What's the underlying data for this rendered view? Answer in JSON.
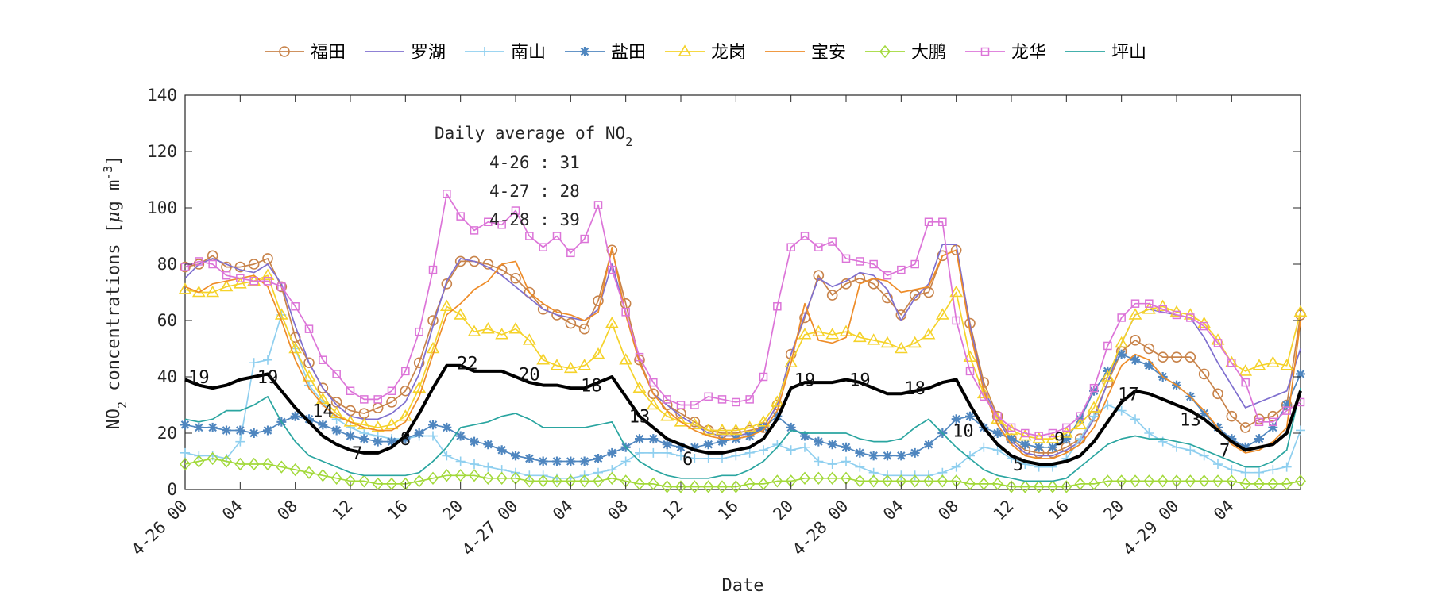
{
  "chart_data": {
    "type": "line",
    "title": "",
    "xlabel": "Date",
    "ylabel": "NO2 concentrations [μg m-3]",
    "ylabel_parts": {
      "pre": "NO",
      "sub": "2",
      "mid": " concentrations [",
      "mu": "μ",
      "mid2": "g m",
      "sup": "-3",
      "post": "]"
    },
    "x_hours": {
      "start": 0,
      "end": 78
    },
    "x_ticks": [
      {
        "hour": 0,
        "label": "4-26 00"
      },
      {
        "hour": 4,
        "label": "04"
      },
      {
        "hour": 8,
        "label": "08"
      },
      {
        "hour": 12,
        "label": "12"
      },
      {
        "hour": 16,
        "label": "16"
      },
      {
        "hour": 20,
        "label": "20"
      },
      {
        "hour": 24,
        "label": "4-27 00"
      },
      {
        "hour": 28,
        "label": "04"
      },
      {
        "hour": 32,
        "label": "08"
      },
      {
        "hour": 36,
        "label": "12"
      },
      {
        "hour": 40,
        "label": "16"
      },
      {
        "hour": 44,
        "label": "20"
      },
      {
        "hour": 48,
        "label": "4-28 00"
      },
      {
        "hour": 52,
        "label": "04"
      },
      {
        "hour": 56,
        "label": "08"
      },
      {
        "hour": 60,
        "label": "12"
      },
      {
        "hour": 64,
        "label": "16"
      },
      {
        "hour": 68,
        "label": "20"
      },
      {
        "hour": 72,
        "label": "4-29 00"
      },
      {
        "hour": 76,
        "label": "04"
      }
    ],
    "ylim": [
      0,
      140
    ],
    "y_ticks": [
      0,
      20,
      40,
      60,
      80,
      100,
      120,
      140
    ],
    "grid": false,
    "legend_position": "top",
    "annotation": {
      "title_pre": "Daily average of NO",
      "title_sub": "2",
      "lines": [
        "4-26 : 31",
        "4-27 : 28",
        "4-28 : 39"
      ]
    },
    "series": [
      {
        "name": "福田",
        "color": "#c8834a",
        "marker": "circle",
        "values": [
          79,
          80,
          83,
          79,
          79,
          80,
          82,
          72,
          54,
          45,
          36,
          31,
          28,
          27,
          29,
          31,
          35,
          45,
          60,
          73,
          81,
          81,
          80,
          78,
          75,
          70,
          64,
          62,
          59,
          57,
          67,
          85,
          66,
          46,
          34,
          30,
          27,
          24,
          21,
          20,
          20,
          21,
          22,
          30,
          48,
          61,
          76,
          69,
          73,
          75,
          73,
          68,
          62,
          69,
          70,
          83,
          85,
          59,
          38,
          26,
          18,
          14,
          13,
          13,
          15,
          18,
          26,
          38,
          49,
          53,
          50,
          47,
          47,
          47,
          41,
          34,
          26,
          22,
          25,
          26,
          30,
          62
        ]
      },
      {
        "name": "罗湖",
        "color": "#7f6fcf",
        "marker": "none",
        "values": [
          75,
          80,
          82,
          80,
          78,
          77,
          80,
          73,
          58,
          45,
          36,
          30,
          26,
          25,
          25,
          27,
          31,
          41,
          58,
          74,
          82,
          81,
          79,
          76,
          72,
          68,
          64,
          62,
          61,
          60,
          64,
          80,
          63,
          45,
          34,
          30,
          26,
          23,
          20,
          19,
          19,
          20,
          22,
          30,
          48,
          62,
          75,
          72,
          74,
          77,
          76,
          71,
          60,
          68,
          73,
          87,
          87,
          58,
          36,
          25,
          17,
          13,
          12,
          12,
          14,
          17,
          25,
          38,
          52,
          62,
          64,
          63,
          62,
          61,
          54,
          45,
          37,
          29,
          31,
          33,
          35,
          50
        ]
      },
      {
        "name": "南山",
        "color": "#8fcfef",
        "marker": "plus",
        "values": [
          13,
          12,
          12,
          11,
          17,
          45,
          46,
          62,
          50,
          37,
          31,
          25,
          22,
          20,
          19,
          18,
          18,
          19,
          19,
          12,
          10,
          9,
          8,
          7,
          6,
          5,
          5,
          4,
          4,
          5,
          6,
          7,
          10,
          13,
          13,
          13,
          12,
          11,
          11,
          11,
          12,
          13,
          14,
          16,
          14,
          15,
          10,
          9,
          10,
          8,
          6,
          5,
          5,
          5,
          5,
          6,
          8,
          12,
          15,
          14,
          11,
          9,
          8,
          8,
          11,
          18,
          26,
          30,
          28,
          25,
          20,
          17,
          15,
          14,
          12,
          9,
          7,
          6,
          6,
          7,
          8,
          21
        ]
      },
      {
        "name": "盐田",
        "color": "#4f86bf",
        "marker": "asterisk",
        "values": [
          23,
          22,
          22,
          21,
          21,
          20,
          21,
          24,
          26,
          25,
          23,
          21,
          19,
          18,
          17,
          17,
          18,
          20,
          23,
          22,
          19,
          17,
          16,
          14,
          12,
          11,
          10,
          10,
          10,
          10,
          11,
          13,
          15,
          18,
          18,
          16,
          15,
          15,
          16,
          17,
          18,
          19,
          22,
          26,
          22,
          19,
          17,
          16,
          15,
          13,
          12,
          12,
          12,
          13,
          16,
          20,
          25,
          26,
          22,
          20,
          18,
          16,
          15,
          15,
          18,
          25,
          35,
          42,
          48,
          46,
          44,
          40,
          37,
          33,
          27,
          22,
          18,
          15,
          18,
          22,
          30,
          41
        ]
      },
      {
        "name": "龙岗",
        "color": "#f5d22a",
        "marker": "triangle",
        "values": [
          71,
          70,
          70,
          72,
          73,
          74,
          76,
          62,
          50,
          40,
          32,
          27,
          24,
          23,
          22,
          23,
          26,
          36,
          50,
          65,
          62,
          56,
          57,
          55,
          57,
          53,
          46,
          44,
          43,
          44,
          48,
          59,
          46,
          36,
          30,
          26,
          24,
          23,
          21,
          21,
          21,
          22,
          24,
          31,
          45,
          55,
          56,
          55,
          56,
          54,
          53,
          52,
          50,
          52,
          55,
          62,
          70,
          47,
          34,
          25,
          21,
          19,
          18,
          18,
          20,
          23,
          29,
          40,
          52,
          62,
          64,
          65,
          63,
          62,
          59,
          53,
          45,
          42,
          44,
          45,
          44,
          63
        ]
      },
      {
        "name": "宝安",
        "color": "#ee8c28",
        "marker": "none",
        "values": [
          72,
          70,
          73,
          74,
          75,
          76,
          72,
          60,
          46,
          36,
          30,
          26,
          24,
          22,
          21,
          21,
          24,
          33,
          48,
          62,
          66,
          71,
          74,
          80,
          81,
          70,
          66,
          63,
          62,
          60,
          63,
          86,
          62,
          45,
          34,
          28,
          24,
          21,
          19,
          18,
          18,
          19,
          21,
          28,
          45,
          66,
          53,
          52,
          54,
          73,
          75,
          74,
          70,
          71,
          72,
          83,
          85,
          56,
          35,
          23,
          16,
          12,
          11,
          11,
          13,
          16,
          22,
          33,
          44,
          48,
          46,
          40,
          37,
          33,
          28,
          22,
          16,
          13,
          14,
          17,
          22,
          60
        ]
      },
      {
        "name": "大鹏",
        "color": "#a2d93a",
        "marker": "diamond",
        "values": [
          9,
          10,
          11,
          10,
          9,
          9,
          9,
          8,
          7,
          6,
          5,
          4,
          3,
          3,
          2,
          2,
          2,
          3,
          4,
          5,
          5,
          5,
          4,
          4,
          4,
          3,
          3,
          3,
          3,
          3,
          3,
          4,
          3,
          2,
          2,
          1,
          1,
          1,
          1,
          1,
          1,
          2,
          2,
          3,
          3,
          4,
          4,
          4,
          4,
          3,
          3,
          3,
          3,
          3,
          3,
          3,
          3,
          2,
          2,
          2,
          1,
          1,
          1,
          1,
          1,
          2,
          2,
          3,
          3,
          3,
          3,
          3,
          3,
          3,
          3,
          3,
          3,
          2,
          2,
          2,
          2,
          3
        ]
      },
      {
        "name": "龙华",
        "color": "#dc74d8",
        "marker": "square",
        "values": [
          79,
          81,
          80,
          76,
          75,
          74,
          74,
          72,
          65,
          57,
          46,
          41,
          35,
          32,
          32,
          35,
          42,
          56,
          78,
          105,
          97,
          92,
          95,
          94,
          99,
          90,
          86,
          90,
          84,
          89,
          101,
          78,
          63,
          47,
          38,
          32,
          30,
          30,
          33,
          32,
          31,
          32,
          40,
          65,
          86,
          90,
          86,
          88,
          82,
          81,
          80,
          76,
          78,
          80,
          95,
          95,
          60,
          42,
          33,
          26,
          22,
          20,
          19,
          20,
          22,
          26,
          36,
          51,
          61,
          66,
          66,
          64,
          62,
          61,
          58,
          52,
          45,
          38,
          24,
          24,
          28,
          31
        ]
      },
      {
        "name": "坪山",
        "color": "#2aa5a0",
        "marker": "none",
        "values": [
          25,
          24,
          25,
          28,
          28,
          30,
          33,
          24,
          17,
          12,
          10,
          8,
          6,
          5,
          5,
          5,
          5,
          6,
          10,
          15,
          22,
          23,
          24,
          26,
          27,
          25,
          22,
          22,
          22,
          22,
          23,
          24,
          15,
          10,
          7,
          5,
          4,
          4,
          4,
          5,
          5,
          7,
          10,
          15,
          21,
          20,
          20,
          20,
          20,
          18,
          17,
          17,
          18,
          22,
          25,
          20,
          15,
          11,
          7,
          5,
          4,
          3,
          3,
          3,
          4,
          8,
          12,
          16,
          18,
          19,
          18,
          18,
          17,
          16,
          14,
          12,
          10,
          8,
          8,
          10,
          14,
          36
        ]
      },
      {
        "name": "",
        "color": "#000000",
        "marker": "none",
        "thick": true,
        "values": [
          39,
          37,
          36,
          37,
          39,
          40,
          41,
          35,
          29,
          24,
          19,
          16,
          14,
          13,
          13,
          15,
          19,
          27,
          36,
          44,
          44,
          42,
          42,
          42,
          40,
          38,
          37,
          37,
          36,
          36,
          38,
          40,
          33,
          26,
          22,
          18,
          16,
          14,
          13,
          13,
          14,
          15,
          18,
          25,
          36,
          38,
          38,
          38,
          39,
          38,
          36,
          34,
          34,
          35,
          36,
          38,
          39,
          30,
          22,
          16,
          12,
          10,
          9,
          9,
          10,
          12,
          17,
          24,
          31,
          35,
          34,
          32,
          30,
          28,
          25,
          21,
          17,
          14,
          15,
          16,
          20,
          35
        ]
      }
    ],
    "data_labels": [
      {
        "hour": 1,
        "value": 40,
        "label": "19"
      },
      {
        "hour": 6,
        "value": 40,
        "label": "19"
      },
      {
        "hour": 10,
        "value": 28,
        "label": "14"
      },
      {
        "hour": 12.5,
        "value": 13,
        "label": "7"
      },
      {
        "hour": 16,
        "value": 18,
        "label": "8"
      },
      {
        "hour": 20.5,
        "value": 45,
        "label": "22"
      },
      {
        "hour": 25,
        "value": 41,
        "label": "20"
      },
      {
        "hour": 29.5,
        "value": 37,
        "label": "18"
      },
      {
        "hour": 33,
        "value": 26,
        "label": "13"
      },
      {
        "hour": 36.5,
        "value": 11,
        "label": "6"
      },
      {
        "hour": 45,
        "value": 39,
        "label": "19"
      },
      {
        "hour": 49,
        "value": 39,
        "label": "19"
      },
      {
        "hour": 53,
        "value": 36,
        "label": "18"
      },
      {
        "hour": 56.5,
        "value": 21,
        "label": "10"
      },
      {
        "hour": 60.5,
        "value": 9,
        "label": "5"
      },
      {
        "hour": 63.5,
        "value": 18,
        "label": "9"
      },
      {
        "hour": 68.5,
        "value": 34,
        "label": "17"
      },
      {
        "hour": 73,
        "value": 25,
        "label": "13"
      },
      {
        "hour": 75.5,
        "value": 14,
        "label": "7"
      }
    ]
  }
}
